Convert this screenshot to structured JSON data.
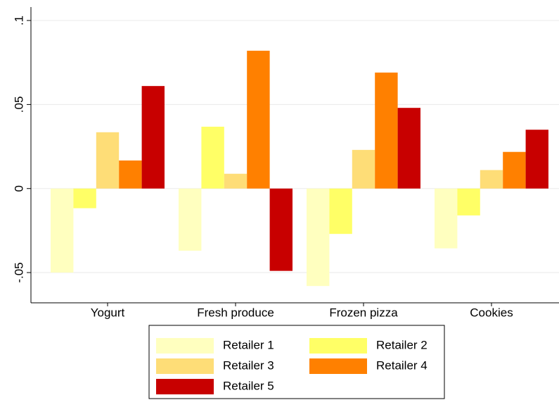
{
  "chart_data": {
    "type": "bar",
    "categories": [
      "Yogurt",
      "Fresh produce",
      "Frozen pizza",
      "Cookies"
    ],
    "series": [
      {
        "name": "Retailer 1",
        "color": "#ffffbf",
        "values": [
          -0.05,
          -0.037,
          -0.058,
          -0.0356
        ]
      },
      {
        "name": "Retailer 2",
        "color": "#ffff66",
        "values": [
          -0.0117,
          0.0368,
          -0.027,
          -0.016
        ]
      },
      {
        "name": "Retailer 3",
        "color": "#fedd77",
        "values": [
          0.0335,
          0.0088,
          0.023,
          0.011
        ]
      },
      {
        "name": "Retailer 4",
        "color": "#ff8000",
        "values": [
          0.0167,
          0.082,
          0.069,
          0.0218
        ]
      },
      {
        "name": "Retailer 5",
        "color": "#c80000",
        "values": [
          0.061,
          -0.049,
          0.048,
          0.035
        ]
      }
    ],
    "ylim": [
      -0.068,
      0.108
    ],
    "yticks": [
      {
        "value": -0.05,
        "label": "-.05"
      },
      0,
      {
        "value": 0.05,
        "label": ".05"
      },
      {
        "value": 0.1,
        "label": ".1"
      }
    ],
    "grid": true
  }
}
